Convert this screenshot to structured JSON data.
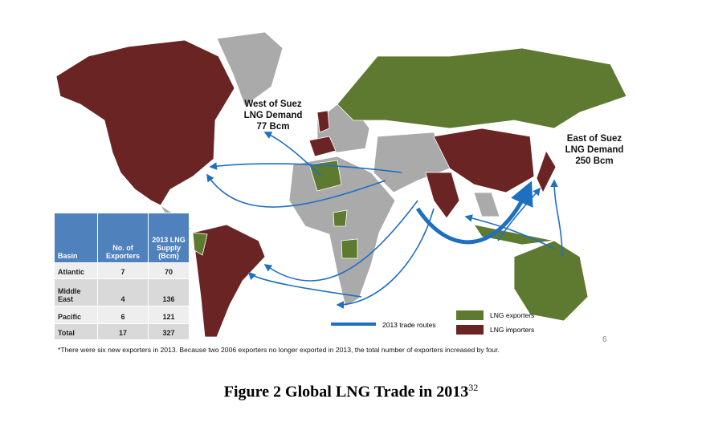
{
  "labels": {
    "west": [
      "West of Suez",
      "LNG Demand",
      "77 Bcm"
    ],
    "east": [
      "East of Suez",
      "LNG Demand",
      "250 Bcm"
    ]
  },
  "table": {
    "header": [
      "Basin",
      "No. of Exporters",
      "2013 LNG Supply (Bcm)"
    ],
    "rows": [
      [
        "Atlantic",
        7,
        70
      ],
      [
        "Middle East",
        4,
        136
      ],
      [
        "Pacific",
        6,
        121
      ],
      [
        "Total",
        17,
        327
      ]
    ]
  },
  "footnote": "*There were six new exporters in 2013. Because two 2006 exporters  no longer exported in 2013, the total number of exporters increased by four.",
  "legend": {
    "routes": "2013 trade routes",
    "exporters": "LNG exporters",
    "importers": "LNG importers"
  },
  "slide_number": "6",
  "caption": {
    "text": "Figure 2 Global LNG Trade in 2013",
    "superscript": "32"
  }
}
